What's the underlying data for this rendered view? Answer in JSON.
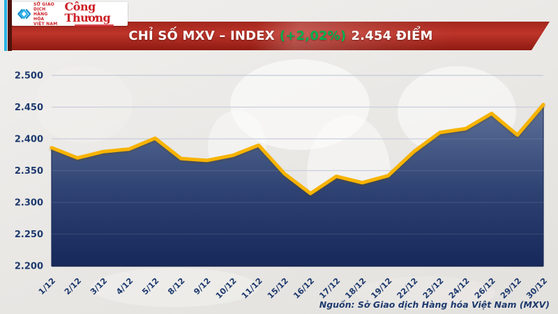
{
  "header": {
    "mxv_logo_lines": "SỞ GIAO DỊCH\nHÀNG HÓA\nVIỆT NAM",
    "congthuong_logo": "Công Thương",
    "banner": {
      "title_prefix": "CHỈ SỐ MXV – INDEX",
      "change": "(+2,02%)",
      "value_text": "2.454 ĐIỂM",
      "bg_color": "#b02c20",
      "change_color": "#00b050"
    }
  },
  "chart_data": {
    "type": "area",
    "title": "Chỉ số MXV – INDEX",
    "categories": [
      "1/12",
      "2/12",
      "3/12",
      "4/12",
      "5/12",
      "8/12",
      "9/12",
      "10/12",
      "11/12",
      "15/12",
      "16/12",
      "17/12",
      "18/12",
      "19/12",
      "22/12",
      "23/12",
      "24/12",
      "26/12",
      "29/12",
      "30/12"
    ],
    "values": [
      2.386,
      2.37,
      2.38,
      2.384,
      2.401,
      2.369,
      2.366,
      2.374,
      2.39,
      2.345,
      2.314,
      2.341,
      2.331,
      2.342,
      2.38,
      2.41,
      2.416,
      2.44,
      2.406,
      2.454
    ],
    "ylim": [
      2.2,
      2.5
    ],
    "y_ticks": [
      {
        "label": "2.200",
        "value": 2.2
      },
      {
        "label": "2.250",
        "value": 2.25
      },
      {
        "label": "2.300",
        "value": 2.3
      },
      {
        "label": "2.350",
        "value": 2.35
      },
      {
        "label": "2.400",
        "value": 2.4
      },
      {
        "label": "2.450",
        "value": 2.45
      },
      {
        "label": "2.500",
        "value": 2.5
      }
    ],
    "grid": true,
    "legend": "none",
    "line_color": "#f7b300",
    "fill_top": "#5e7199",
    "fill_mid": "#2d4172",
    "fill_bottom": "#17285a",
    "grid_color": "#c3cad7",
    "axis_color": "#1b2b56",
    "label_color": "#1e3a6e"
  },
  "footer": {
    "source": "Nguồn: Sở Giao dịch Hàng hóa Việt Nam (MXV)"
  }
}
